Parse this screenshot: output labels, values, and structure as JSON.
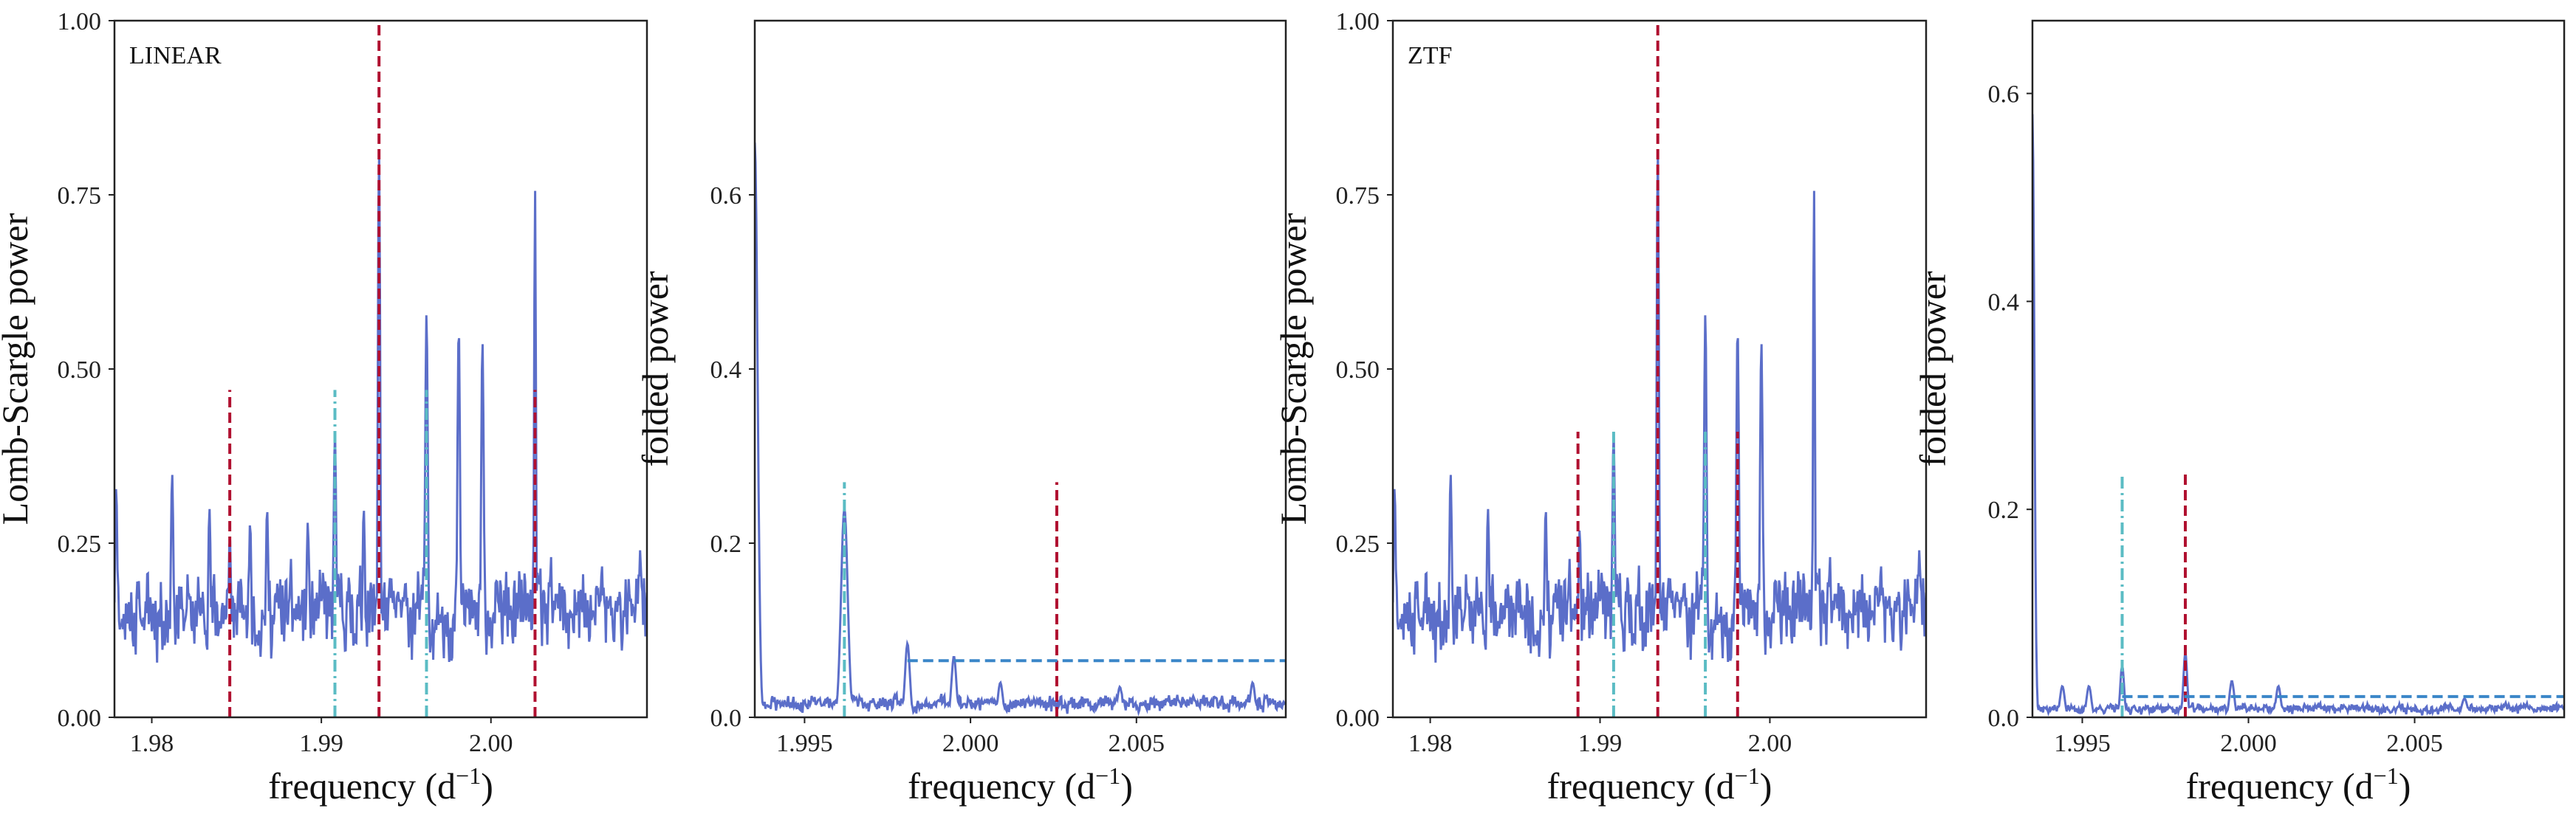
{
  "colors": {
    "spectrum": "#5b6ec9",
    "red": "#b01030",
    "cyan": "#5bbcc4",
    "threshold": "#3a86c8",
    "frame": "#222222"
  },
  "chart_data": [
    {
      "type": "line",
      "panel_label": "LINEAR",
      "xlabel": "frequency (d",
      "xlabel_sup": "−1",
      "xlabel_tail": ")",
      "ylabel": "Lomb-Scargle power",
      "xlim": [
        1.9778,
        2.0092
      ],
      "ylim": [
        0,
        1
      ],
      "xticks": [
        1.98,
        1.99,
        2.0
      ],
      "xtick_labels": [
        "1.98",
        "1.99",
        "2.00"
      ],
      "yticks": [
        0,
        0.25,
        0.5,
        0.75,
        1.0
      ],
      "ytick_labels": [
        "0.00",
        "0.25",
        "0.50",
        "0.75",
        "1.00"
      ],
      "spectrum": {
        "base_mean": 0.12,
        "noise": 0.08,
        "seed": 11,
        "peaks": [
          [
            1.9779,
            0.33,
            0.00012
          ],
          [
            1.9812,
            0.35,
            0.00012
          ],
          [
            1.9834,
            0.3,
            0.00012
          ],
          [
            1.9846,
            0.26,
            0.00012
          ],
          [
            1.9858,
            0.28,
            0.00012
          ],
          [
            1.9868,
            0.3,
            0.00012
          ],
          [
            1.9892,
            0.28,
            0.00012
          ],
          [
            1.9908,
            0.41,
            0.00012
          ],
          [
            1.9925,
            0.3,
            0.00012
          ],
          [
            1.9934,
            0.82,
            0.0001
          ],
          [
            1.9962,
            0.58,
            0.00012
          ],
          [
            1.9981,
            0.56,
            0.00012
          ],
          [
            1.9995,
            0.54,
            0.00012
          ],
          [
            2.0026,
            0.76,
            8e-05
          ],
          [
            2.0088,
            0.24,
            0.00012
          ]
        ]
      },
      "markers": [
        {
          "x": 1.9934,
          "y_top": 1.0,
          "style": "red-dash"
        },
        {
          "x": 1.9846,
          "y_top": 0.47,
          "style": "red-dash"
        },
        {
          "x": 2.0026,
          "y_top": 0.47,
          "style": "red-dash"
        },
        {
          "x": 1.9908,
          "y_top": 0.47,
          "style": "cyan-dashdot"
        },
        {
          "x": 1.9962,
          "y_top": 0.47,
          "style": "cyan-dashdot"
        }
      ],
      "threshold": null
    },
    {
      "type": "line",
      "panel_label": "",
      "xlabel": "frequency (d",
      "xlabel_sup": "−1",
      "xlabel_tail": ")",
      "ylabel": "folded power",
      "xlim": [
        1.9935,
        2.0095
      ],
      "ylim": [
        0,
        0.8
      ],
      "xticks": [
        1.995,
        2.0,
        2.005
      ],
      "xtick_labels": [
        "1.995",
        "2.000",
        "2.005"
      ],
      "yticks": [
        0,
        0.2,
        0.4,
        0.6
      ],
      "ytick_labels": [
        "0.0",
        "0.2",
        "0.4",
        "0.6"
      ],
      "spectrum": {
        "base_mean": 0.012,
        "noise": 0.012,
        "seed": 23,
        "start_peak": [
          1.9935,
          0.66,
          0.00012
        ],
        "peaks": [
          [
            1.9962,
            0.24,
            0.00014
          ],
          [
            1.9981,
            0.085,
            0.0001
          ],
          [
            1.9995,
            0.07,
            0.0001
          ],
          [
            2.0009,
            0.04,
            0.0001
          ],
          [
            2.0045,
            0.035,
            0.0001
          ],
          [
            2.0085,
            0.04,
            0.0001
          ]
        ]
      },
      "markers": [
        {
          "x": 1.9962,
          "y_top": 0.27,
          "style": "cyan-dashdot"
        },
        {
          "x": 2.0026,
          "y_top": 0.27,
          "style": "red-dash"
        }
      ],
      "threshold": {
        "x_start": 1.9981,
        "y": 0.065
      }
    },
    {
      "type": "line",
      "panel_label": "ZTF",
      "xlabel": "frequency (d",
      "xlabel_sup": "−1",
      "xlabel_tail": ")",
      "ylabel": "Lomb-Scargle power",
      "xlim": [
        1.9778,
        2.0092
      ],
      "ylim": [
        0,
        1
      ],
      "xticks": [
        1.98,
        1.99,
        2.0
      ],
      "xtick_labels": [
        "1.98",
        "1.99",
        "2.00"
      ],
      "yticks": [
        0,
        0.25,
        0.5,
        0.75,
        1.0
      ],
      "ytick_labels": [
        "0.00",
        "0.25",
        "0.50",
        "0.75",
        "1.00"
      ],
      "spectrum": {
        "base_mean": 0.12,
        "noise": 0.08,
        "seed": 11,
        "peaks": [
          [
            1.9779,
            0.33,
            0.00012
          ],
          [
            1.9812,
            0.35,
            0.00012
          ],
          [
            1.9834,
            0.3,
            0.00012
          ],
          [
            1.9868,
            0.3,
            0.00012
          ],
          [
            1.9888,
            0.27,
            0.00012
          ],
          [
            1.9908,
            0.41,
            0.00012
          ],
          [
            1.9934,
            0.82,
            0.0001
          ],
          [
            1.9962,
            0.58,
            0.00012
          ],
          [
            1.9981,
            0.56,
            0.00012
          ],
          [
            1.9995,
            0.54,
            0.00012
          ],
          [
            2.0026,
            0.76,
            8e-05
          ],
          [
            2.0088,
            0.24,
            0.00012
          ]
        ]
      },
      "markers": [
        {
          "x": 1.9934,
          "y_top": 1.0,
          "style": "red-dash"
        },
        {
          "x": 1.9887,
          "y_top": 0.41,
          "style": "red-dash"
        },
        {
          "x": 1.9981,
          "y_top": 0.41,
          "style": "red-dash"
        },
        {
          "x": 1.9908,
          "y_top": 0.41,
          "style": "cyan-dashdot"
        },
        {
          "x": 1.9962,
          "y_top": 0.41,
          "style": "cyan-dashdot"
        }
      ],
      "threshold": null
    },
    {
      "type": "line",
      "panel_label": "",
      "xlabel": "frequency (d",
      "xlabel_sup": "−1",
      "xlabel_tail": ")",
      "ylabel": "folded power",
      "xlim": [
        1.9935,
        2.0095
      ],
      "ylim": [
        0,
        0.67
      ],
      "xticks": [
        1.995,
        2.0,
        2.005
      ],
      "xtick_labels": [
        "1.995",
        "2.000",
        "2.005"
      ],
      "yticks": [
        0,
        0.2,
        0.4,
        0.6
      ],
      "ytick_labels": [
        "0.0",
        "0.2",
        "0.4",
        "0.6"
      ],
      "spectrum": {
        "base_mean": 0.006,
        "noise": 0.006,
        "seed": 37,
        "start_peak": [
          1.9935,
          0.58,
          8e-05
        ],
        "peaks": [
          [
            1.9944,
            0.03,
            0.0001
          ],
          [
            1.9952,
            0.03,
            0.0001
          ],
          [
            1.9962,
            0.05,
            8e-05
          ],
          [
            1.9981,
            0.062,
            8e-05
          ],
          [
            1.9995,
            0.035,
            0.0001
          ],
          [
            2.0009,
            0.03,
            0.0001
          ],
          [
            2.0065,
            0.018,
            0.00012
          ]
        ]
      },
      "markers": [
        {
          "x": 1.9962,
          "y_top": 0.235,
          "style": "cyan-dashdot"
        },
        {
          "x": 1.9981,
          "y_top": 0.235,
          "style": "red-dash"
        }
      ],
      "threshold": {
        "x_start": 1.9962,
        "y": 0.02
      }
    }
  ]
}
